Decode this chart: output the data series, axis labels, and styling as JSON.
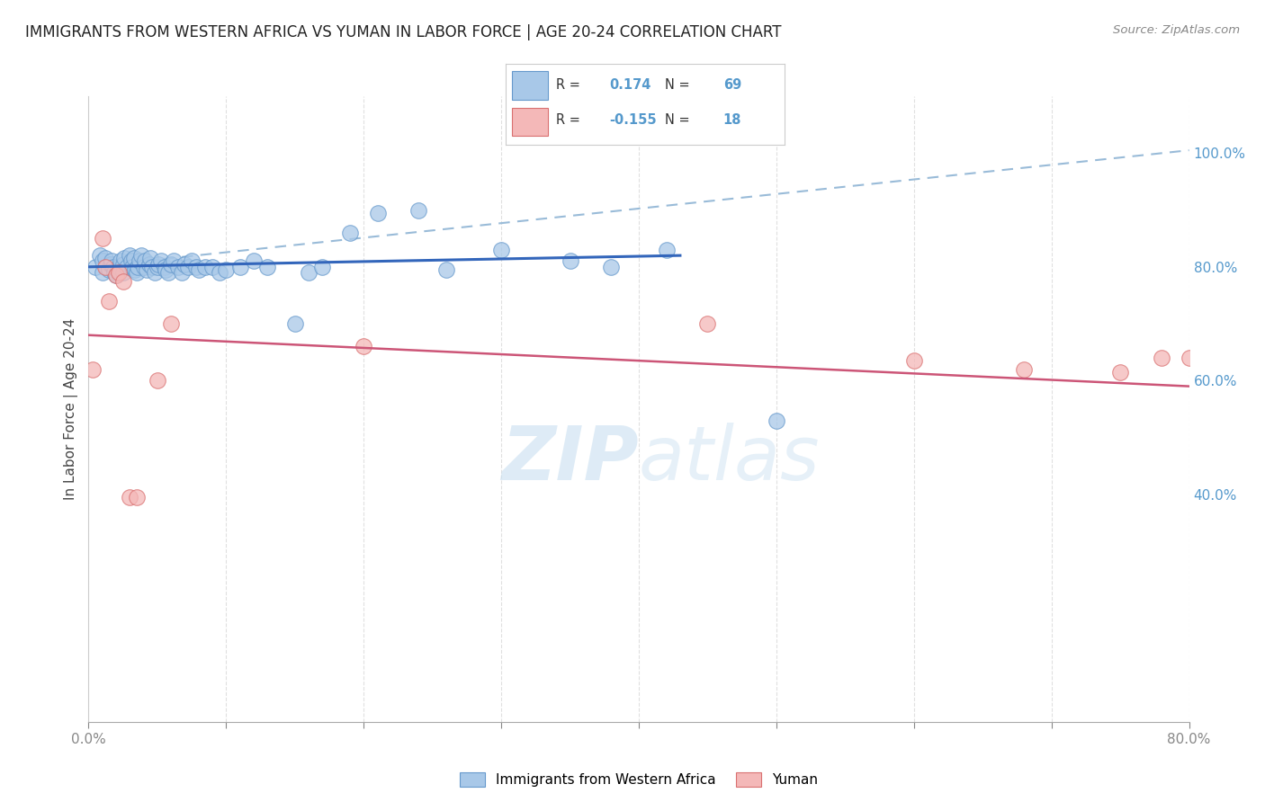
{
  "title": "IMMIGRANTS FROM WESTERN AFRICA VS YUMAN IN LABOR FORCE | AGE 20-24 CORRELATION CHART",
  "source": "Source: ZipAtlas.com",
  "ylabel": "In Labor Force | Age 20-24",
  "xlim": [
    0.0,
    0.8
  ],
  "ylim": [
    0.0,
    1.1
  ],
  "legend_R1": "0.174",
  "legend_N1": "69",
  "legend_R2": "-0.155",
  "legend_N2": "18",
  "blue_color": "#a8c8e8",
  "blue_edge_color": "#6699cc",
  "pink_color": "#f4b8b8",
  "pink_edge_color": "#d97070",
  "blue_line_color": "#3366bb",
  "pink_line_color": "#cc5577",
  "dashed_line_color": "#99bbd8",
  "watermark_color": "#c8dff0",
  "background_color": "#ffffff",
  "grid_color": "#e0e0e0",
  "right_axis_color": "#5599cc",
  "blue_scatter_x": [
    0.005,
    0.008,
    0.01,
    0.01,
    0.012,
    0.013,
    0.015,
    0.016,
    0.017,
    0.018,
    0.019,
    0.02,
    0.021,
    0.022,
    0.023,
    0.025,
    0.025,
    0.026,
    0.028,
    0.03,
    0.031,
    0.032,
    0.033,
    0.034,
    0.035,
    0.036,
    0.037,
    0.038,
    0.04,
    0.041,
    0.042,
    0.044,
    0.045,
    0.046,
    0.048,
    0.05,
    0.051,
    0.053,
    0.055,
    0.056,
    0.058,
    0.06,
    0.062,
    0.065,
    0.068,
    0.07,
    0.072,
    0.075,
    0.078,
    0.08,
    0.085,
    0.09,
    0.095,
    0.1,
    0.11,
    0.12,
    0.13,
    0.15,
    0.16,
    0.17,
    0.19,
    0.21,
    0.24,
    0.26,
    0.3,
    0.35,
    0.38,
    0.42,
    0.5
  ],
  "blue_scatter_y": [
    0.8,
    0.82,
    0.81,
    0.79,
    0.815,
    0.8,
    0.795,
    0.805,
    0.81,
    0.8,
    0.79,
    0.785,
    0.795,
    0.8,
    0.81,
    0.805,
    0.79,
    0.815,
    0.8,
    0.82,
    0.81,
    0.8,
    0.815,
    0.795,
    0.79,
    0.8,
    0.81,
    0.82,
    0.8,
    0.81,
    0.795,
    0.805,
    0.815,
    0.8,
    0.79,
    0.8,
    0.805,
    0.81,
    0.8,
    0.795,
    0.79,
    0.805,
    0.81,
    0.8,
    0.79,
    0.805,
    0.8,
    0.81,
    0.8,
    0.795,
    0.8,
    0.8,
    0.79,
    0.795,
    0.8,
    0.81,
    0.8,
    0.7,
    0.79,
    0.8,
    0.86,
    0.895,
    0.9,
    0.795,
    0.83,
    0.81,
    0.8,
    0.83,
    0.53
  ],
  "pink_scatter_x": [
    0.003,
    0.01,
    0.012,
    0.015,
    0.02,
    0.022,
    0.025,
    0.03,
    0.035,
    0.05,
    0.06,
    0.2,
    0.45,
    0.6,
    0.68,
    0.75,
    0.78,
    0.8
  ],
  "pink_scatter_y": [
    0.62,
    0.85,
    0.8,
    0.74,
    0.785,
    0.79,
    0.775,
    0.395,
    0.395,
    0.6,
    0.7,
    0.66,
    0.7,
    0.635,
    0.62,
    0.615,
    0.64,
    0.64
  ],
  "blue_line_x0": 0.0,
  "blue_line_x1": 0.43,
  "blue_line_y0": 0.8,
  "blue_line_y1": 0.82,
  "dashed_line_x0": 0.0,
  "dashed_line_x1": 0.8,
  "dashed_line_y0": 0.8,
  "dashed_line_y1": 1.005,
  "pink_line_x0": 0.0,
  "pink_line_x1": 0.8,
  "pink_line_y0": 0.68,
  "pink_line_y1": 0.59
}
